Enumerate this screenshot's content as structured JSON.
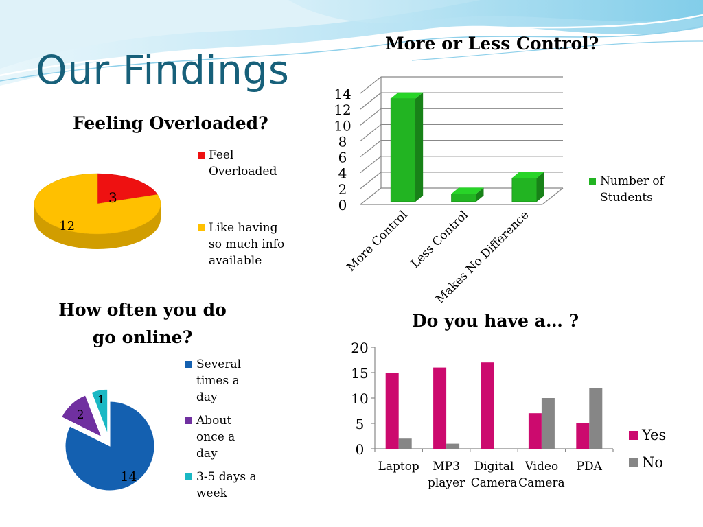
{
  "slide": {
    "title": "Our Findings",
    "colors": {
      "title": "#17607a",
      "wave_light": "#bfe6f5",
      "wave_mid": "#7ccbe8"
    }
  },
  "chart_data": [
    {
      "id": "feeling-overloaded",
      "type": "pie",
      "title": "Feeling Overloaded?",
      "style": "3d",
      "slices": [
        {
          "label": "Feel Overloaded",
          "value": 3,
          "color": "#ee1111"
        },
        {
          "label": "Like having so much info available",
          "value": 12,
          "color": "#ffc000"
        }
      ],
      "data_labels": [
        "3",
        "12"
      ],
      "legend_position": "right"
    },
    {
      "id": "more-or-less-control",
      "type": "bar",
      "title": "More or Less Control?",
      "style": "3d",
      "categories": [
        "More Control",
        "Less Control",
        "Makes No Difference"
      ],
      "series": [
        {
          "name": "Number of Students",
          "values": [
            13,
            1,
            3
          ],
          "color": "#22b422"
        }
      ],
      "ylim": [
        0,
        14
      ],
      "yticks": [
        "0",
        "2",
        "4",
        "6",
        "8",
        "10",
        "12",
        "14"
      ],
      "grid": true,
      "legend_position": "right"
    },
    {
      "id": "how-often-online",
      "type": "pie",
      "title": "How often you do go online?",
      "style": "exploded",
      "slices": [
        {
          "label": "Several times a day",
          "value": 14,
          "color": "#1460b0"
        },
        {
          "label": "About once a day",
          "value": 2,
          "color": "#7030a0"
        },
        {
          "label": "3-5 days a week",
          "value": 1,
          "color": "#1ab8c4"
        }
      ],
      "data_labels": [
        "14",
        "2",
        "1"
      ],
      "legend_position": "right"
    },
    {
      "id": "do-you-have-a",
      "type": "bar",
      "title": "Do you have a… ?",
      "categories": [
        "Laptop",
        "MP3 player",
        "Digital Camera",
        "Video Camera",
        "PDA"
      ],
      "series": [
        {
          "name": "Yes",
          "values": [
            15,
            16,
            17,
            7,
            5
          ],
          "color": "#cc0a6e"
        },
        {
          "name": "No",
          "values": [
            2,
            1,
            0,
            10,
            12
          ],
          "color": "#868686"
        }
      ],
      "ylim": [
        0,
        20
      ],
      "yticks": [
        "0",
        "5",
        "10",
        "15",
        "20"
      ],
      "grid": false,
      "legend_position": "right"
    }
  ]
}
